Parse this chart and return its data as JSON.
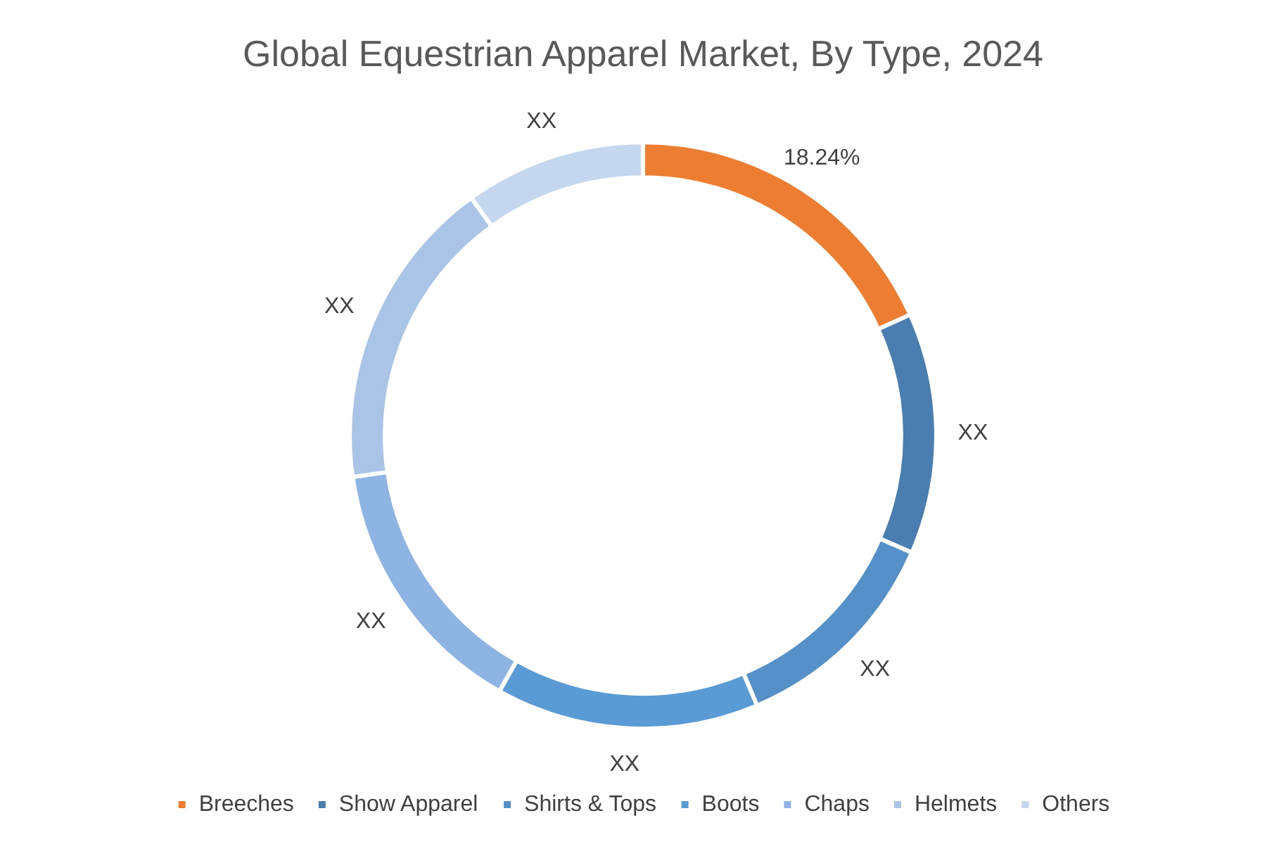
{
  "chart_data": {
    "type": "donut",
    "title": "Global Equestrian Apparel Market, By Type, 2024",
    "categories": [
      "Breeches",
      "Show Apparel",
      "Shirts & Tops",
      "Boots",
      "Chaps",
      "Helmets",
      "Others"
    ],
    "values": [
      18.24,
      13.3,
      12.1,
      14.5,
      14.6,
      17.3,
      9.96
    ],
    "colors": [
      "#ed7d31",
      "#4a7eb0",
      "#5590c8",
      "#5b9bd5",
      "#8eb4e3",
      "#a9c4e6",
      "#c5d7ee"
    ],
    "value_labels": [
      "18.24%",
      "XX",
      "XX",
      "XX",
      "XX",
      "XX",
      "XX"
    ],
    "legend": "bottom"
  }
}
